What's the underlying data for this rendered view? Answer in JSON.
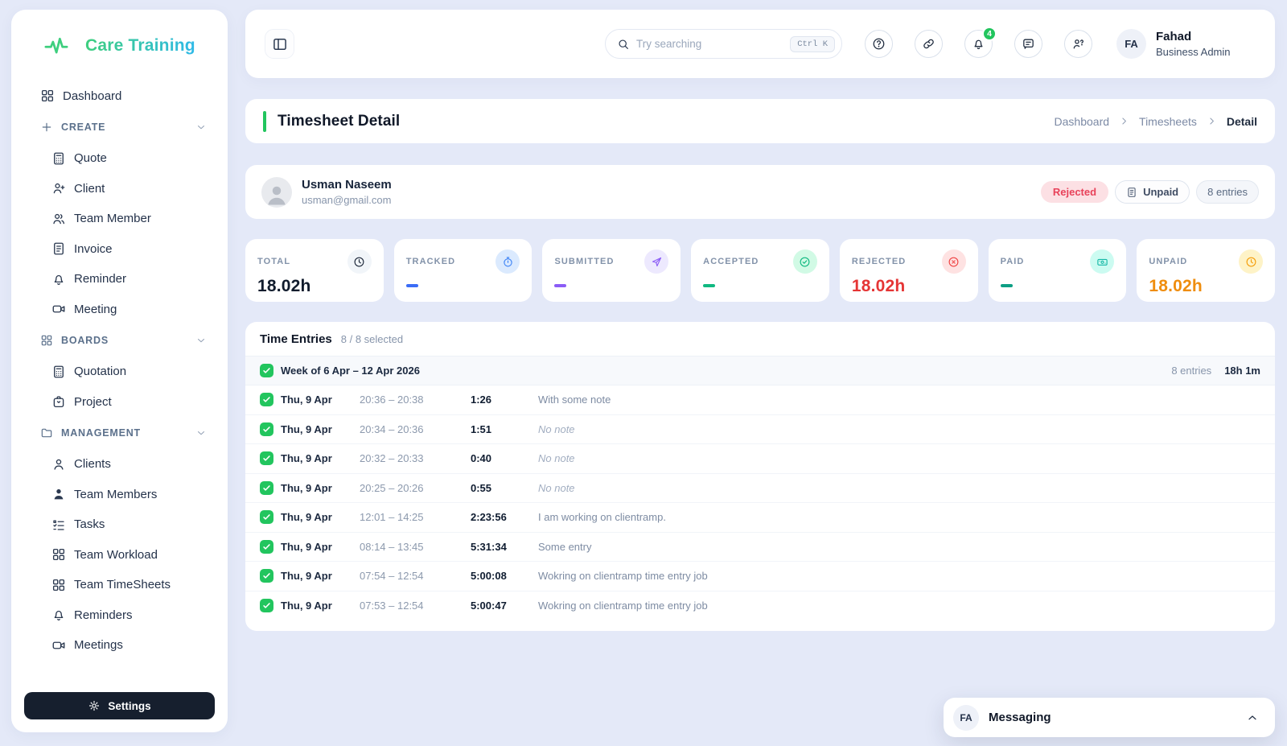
{
  "app": {
    "name": "Care Training"
  },
  "colors": {
    "brand_green": "#3ecf7e",
    "brand_blue": "#2fb9e8",
    "accent_green": "#22c55e",
    "rejected_red": "#e8425a"
  },
  "sidebar": {
    "items": [
      {
        "label": "Dashboard",
        "icon": "dashboard",
        "type": "item"
      },
      {
        "label": "CREATE",
        "icon": "plus",
        "type": "section"
      },
      {
        "label": "Quote",
        "icon": "calculator",
        "type": "sub"
      },
      {
        "label": "Client",
        "icon": "user-plus",
        "type": "sub"
      },
      {
        "label": "Team Member",
        "icon": "users",
        "type": "sub"
      },
      {
        "label": "Invoice",
        "icon": "file-text",
        "type": "sub"
      },
      {
        "label": "Reminder",
        "icon": "bell",
        "type": "sub"
      },
      {
        "label": "Meeting",
        "icon": "video",
        "type": "sub"
      },
      {
        "label": "BOARDS",
        "icon": "dashboard",
        "type": "section"
      },
      {
        "label": "Quotation",
        "icon": "calculator",
        "type": "sub"
      },
      {
        "label": "Project",
        "icon": "briefcase",
        "type": "sub"
      },
      {
        "label": "MANAGEMENT",
        "icon": "folder",
        "type": "section"
      },
      {
        "label": "Clients",
        "icon": "user",
        "type": "sub"
      },
      {
        "label": "Team Members",
        "icon": "user-solid",
        "type": "sub"
      },
      {
        "label": "Tasks",
        "icon": "tasks",
        "type": "sub"
      },
      {
        "label": "Team Workload",
        "icon": "dashboard",
        "type": "sub"
      },
      {
        "label": "Team TimeSheets",
        "icon": "dashboard",
        "type": "sub"
      },
      {
        "label": "Reminders",
        "icon": "bell",
        "type": "sub"
      },
      {
        "label": "Meetings",
        "icon": "video",
        "type": "sub"
      }
    ],
    "settings_label": "Settings"
  },
  "topbar": {
    "search_placeholder": "Try searching",
    "shortcut": "Ctrl K",
    "actions": [
      {
        "name": "help"
      },
      {
        "name": "link"
      },
      {
        "name": "notifications",
        "badge": "4"
      },
      {
        "name": "chat"
      },
      {
        "name": "user-question"
      }
    ],
    "user": {
      "initials": "FA",
      "name": "Fahad",
      "role": "Business Admin"
    }
  },
  "page": {
    "title": "Timesheet Detail",
    "breadcrumb": [
      "Dashboard",
      "Timesheets",
      "Detail"
    ]
  },
  "employee": {
    "name": "Usman Naseem",
    "email": "usman@gmail.com",
    "status_badge": "Rejected",
    "payment_badge": "Unpaid",
    "entries_badge": "8 entries"
  },
  "stats": [
    {
      "label": "TOTAL",
      "icon": "clock",
      "value": "18.02h",
      "value_color": "#111c2d",
      "icon_color": "#1e293b",
      "icon_bg": "#f1f5f9"
    },
    {
      "label": "TRACKED",
      "icon": "timer",
      "value": "",
      "dash_color": "#3b6cf6",
      "icon_color": "#3b82f6",
      "icon_bg": "#dbeafe"
    },
    {
      "label": "SUBMITTED",
      "icon": "send",
      "value": "",
      "dash_color": "#8b5cf6",
      "icon_color": "#8b5cf6",
      "icon_bg": "#ede9fe"
    },
    {
      "label": "ACCEPTED",
      "icon": "check-circle",
      "value": "",
      "dash_color": "#10b981",
      "icon_color": "#10b981",
      "icon_bg": "#d1fae5"
    },
    {
      "label": "REJECTED",
      "icon": "x-circle",
      "value": "18.02h",
      "value_color": "#e53535",
      "icon_color": "#ef4444",
      "icon_bg": "#fee2e2"
    },
    {
      "label": "PAID",
      "icon": "banknote",
      "value": "",
      "dash_color": "#0d9f84",
      "icon_color": "#14b8a6",
      "icon_bg": "#ccfbf1"
    },
    {
      "label": "UNPAID",
      "icon": "clock",
      "value": "18.02h",
      "value_color": "#ef8d0e",
      "icon_color": "#f59e0b",
      "icon_bg": "#fef3c7"
    }
  ],
  "timesheet": {
    "title": "Time Entries",
    "selected": "8 / 8 selected",
    "week": {
      "label": "Week of 6 Apr – 12 Apr 2026",
      "entries": "8 entries",
      "total": "18h 1m"
    },
    "rows": [
      {
        "date": "Thu, 9 Apr",
        "range": "20:36 – 20:38",
        "duration": "1:26",
        "note": "With some note",
        "empty": false
      },
      {
        "date": "Thu, 9 Apr",
        "range": "20:34 – 20:36",
        "duration": "1:51",
        "note": "No note",
        "empty": true
      },
      {
        "date": "Thu, 9 Apr",
        "range": "20:32 – 20:33",
        "duration": "0:40",
        "note": "No note",
        "empty": true
      },
      {
        "date": "Thu, 9 Apr",
        "range": "20:25 – 20:26",
        "duration": "0:55",
        "note": "No note",
        "empty": true
      },
      {
        "date": "Thu, 9 Apr",
        "range": "12:01 – 14:25",
        "duration": "2:23:56",
        "note": "I am working on clientramp.",
        "empty": false
      },
      {
        "date": "Thu, 9 Apr",
        "range": "08:14 – 13:45",
        "duration": "5:31:34",
        "note": "Some entry",
        "empty": false
      },
      {
        "date": "Thu, 9 Apr",
        "range": "07:54 – 12:54",
        "duration": "5:00:08",
        "note": "Wokring on clientramp time entry job",
        "empty": false
      },
      {
        "date": "Thu, 9 Apr",
        "range": "07:53 – 12:54",
        "duration": "5:00:47",
        "note": "Wokring on clientramp time entry job",
        "empty": false
      }
    ]
  },
  "messaging": {
    "initials": "FA",
    "label": "Messaging"
  }
}
